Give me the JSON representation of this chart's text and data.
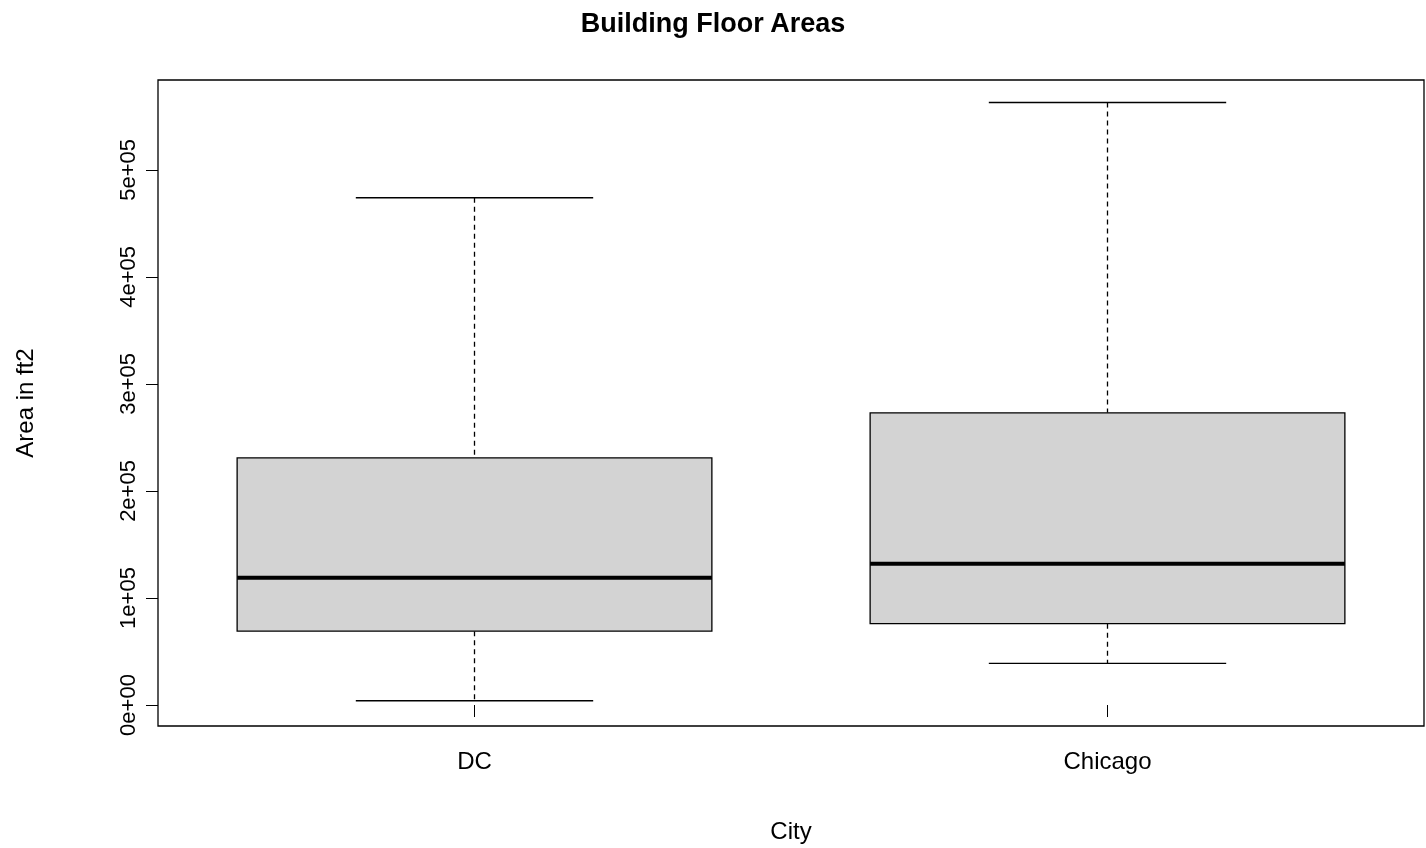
{
  "chart_data": {
    "type": "box",
    "title": "Building Floor Areas",
    "xlabel": "City",
    "ylabel": "Area in ft2",
    "categories": [
      "DC",
      "Chicago"
    ],
    "series": [
      {
        "color": "#d3d3d3",
        "boxes": [
          {
            "low": 4000,
            "q1": 69000,
            "median": 119000,
            "q3": 231000,
            "high": 474000
          },
          {
            "low": 39000,
            "q1": 76000,
            "median": 132000,
            "q3": 273000,
            "high": 563000
          }
        ]
      }
    ],
    "ylim": [
      -19600,
      584000
    ],
    "yticks": [
      {
        "value": 0,
        "label": "0e+00"
      },
      {
        "value": 100000,
        "label": "1e+05"
      },
      {
        "value": 200000,
        "label": "2e+05"
      },
      {
        "value": 300000,
        "label": "3e+05"
      },
      {
        "value": 400000,
        "label": "4e+05"
      },
      {
        "value": 500000,
        "label": "5e+05"
      }
    ]
  }
}
